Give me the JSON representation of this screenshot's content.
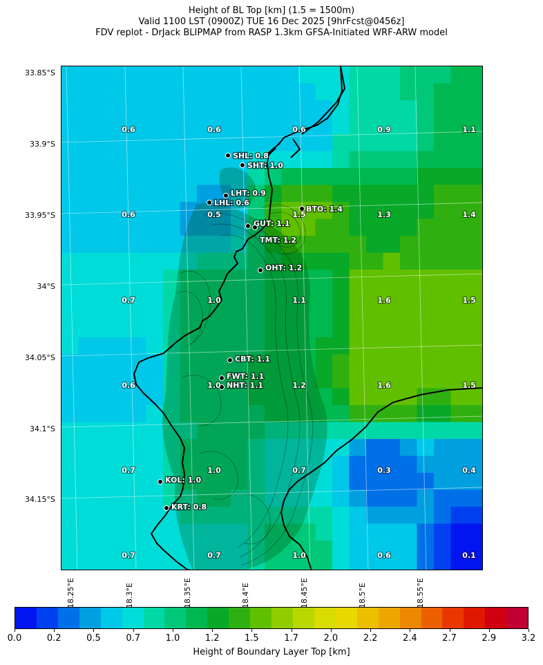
{
  "title": {
    "line1": "Height of BL Top [km] (1.5 = 1500m)",
    "line2": "Valid 1100 LST (0900Z) TUE 16 Dec 2025 [9hrFcst@0456z]",
    "line3": "FDV replot - DrJack BLIPMAP from RASP 1.3km GFSA-Initiated WRF-ARW model"
  },
  "axes": {
    "lat_labels": [
      "33.85°S",
      "33.9°S",
      "33.95°S",
      "34°S",
      "34.05°S",
      "34.1°S",
      "34.15°S"
    ],
    "lon_labels": [
      "18.25°E",
      "18.3°E",
      "18.35°E",
      "18.4°E",
      "18.45°E",
      "18.5°E",
      "18.55°E"
    ]
  },
  "grid_values": [
    [
      "0.6",
      "0.6",
      "0.6",
      "0.9",
      "1.1"
    ],
    [
      "0.6",
      "0.5",
      "1.5",
      "1.3",
      "1.4"
    ],
    [
      "0.7",
      "1.0",
      "1.1",
      "1.6",
      "1.5"
    ],
    [
      "0.6",
      "1.0",
      "1.2",
      "1.6",
      "1.5"
    ],
    [
      "0.7",
      "1.0",
      "0.7",
      "0.3",
      "0.4"
    ],
    [
      "0.7",
      "0.7",
      "1.0",
      "0.6",
      "0.1"
    ]
  ],
  "stations": [
    {
      "label": "SHL: 0.8"
    },
    {
      "label": "SHT: 1.0"
    },
    {
      "label": "LHT: 0.9"
    },
    {
      "label": "LHL: 0.6"
    },
    {
      "label": "BTO: 1.4"
    },
    {
      "label": "GUT: 1.1"
    },
    {
      "label": "TMT: 1.2"
    },
    {
      "label": "OHT: 1.2"
    },
    {
      "label": "CBT: 1.1"
    },
    {
      "label": "FWT: 1.1"
    },
    {
      "label": "NHT: 1.1"
    },
    {
      "label": "KOL: 1.0"
    },
    {
      "label": "KRT: 0.8"
    }
  ],
  "colorbar": {
    "label": "Height of Boundary Layer Top [km]",
    "ticks": [
      "0.0",
      "0.2",
      "0.5",
      "0.7",
      "1.0",
      "1.2",
      "1.5",
      "1.7",
      "2.0",
      "2.2",
      "2.4",
      "2.7",
      "2.9",
      "3.2"
    ],
    "colors": [
      "#0015f0",
      "#0040f0",
      "#0070e8",
      "#00a0e0",
      "#00c8e8",
      "#00ddd8",
      "#00d8a8",
      "#00c878",
      "#00b850",
      "#08a828",
      "#30b010",
      "#60c000",
      "#90cc00",
      "#b8d800",
      "#d8dc00",
      "#e8d800",
      "#ecc000",
      "#eca800",
      "#ec8800",
      "#ec6000",
      "#e83800",
      "#e01800",
      "#d00010",
      "#c00030"
    ]
  }
}
